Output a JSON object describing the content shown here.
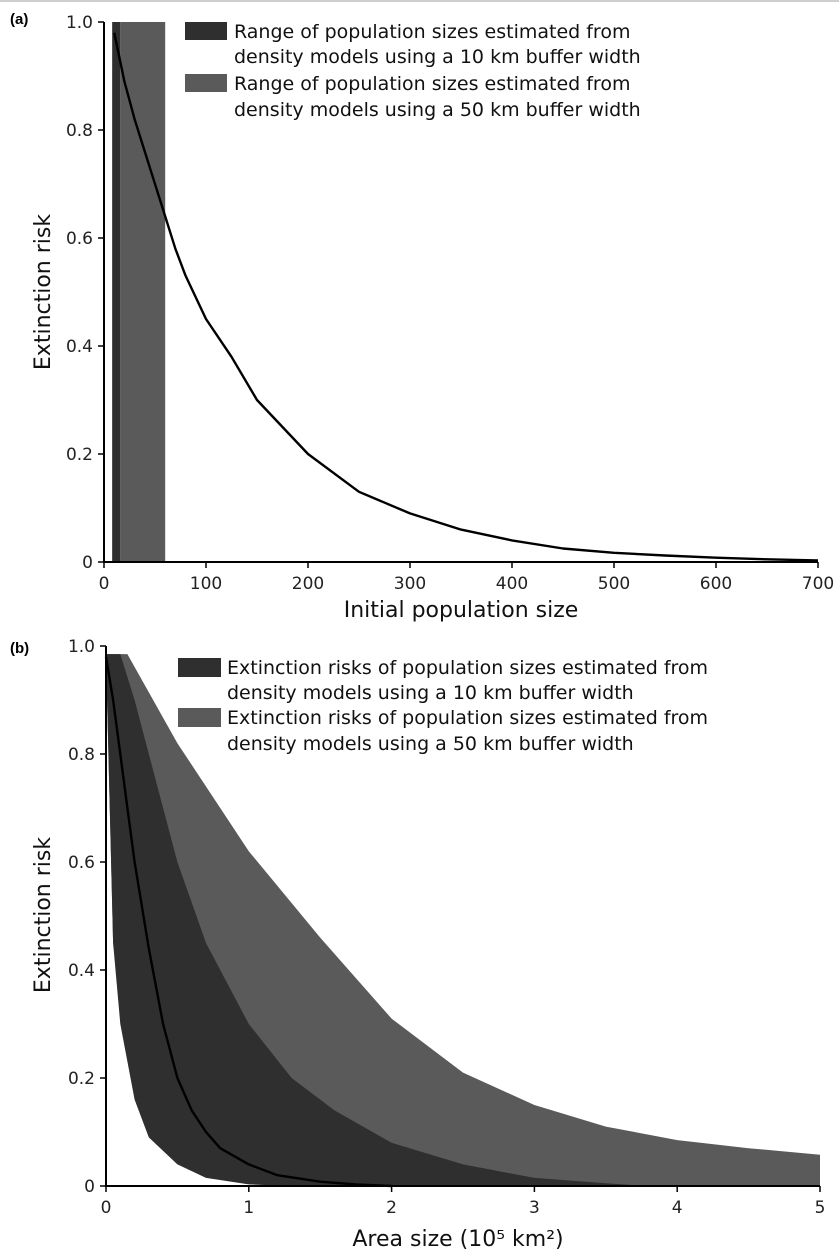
{
  "chart_data": [
    {
      "panel": "(a)",
      "type": "line",
      "xlabel": "Initial population size",
      "ylabel": "Extinction risk",
      "xlim": [
        0,
        700
      ],
      "ylim": [
        0,
        1.0
      ],
      "xticks": [
        "0",
        "100",
        "200",
        "300",
        "400",
        "500",
        "600",
        "700"
      ],
      "yticks": [
        "0",
        "0.2",
        "0.4",
        "0.6",
        "0.8",
        "1.0"
      ],
      "legend": [
        {
          "line1": "Range of population sizes estimated from",
          "line2": "density models using a 10 km buffer width",
          "color": "#2f2f2f"
        },
        {
          "line1": "Range of population sizes estimated from",
          "line2": "density models using a 50 km buffer width",
          "color": "#5a5a5a"
        }
      ],
      "bands": [
        {
          "name": "Range of population sizes estimated from density models using a 10 km buffer width",
          "x_range": [
            8,
            16
          ],
          "color": "#2f2f2f"
        },
        {
          "name": "Range of population sizes estimated from density models using a 50 km buffer width",
          "x_range": [
            16,
            60
          ],
          "color": "#5a5a5a"
        }
      ],
      "series": [
        {
          "x": [
            10,
            20,
            30,
            40,
            50,
            60,
            70,
            80,
            90,
            100,
            125,
            150,
            175,
            200,
            250,
            300,
            350,
            400,
            450,
            500,
            550,
            600,
            650,
            700
          ],
          "y": [
            0.98,
            0.89,
            0.82,
            0.76,
            0.7,
            0.64,
            0.58,
            0.53,
            0.49,
            0.45,
            0.38,
            0.3,
            0.25,
            0.2,
            0.13,
            0.09,
            0.06,
            0.04,
            0.025,
            0.017,
            0.012,
            0.008,
            0.005,
            0.003
          ]
        }
      ]
    },
    {
      "panel": "(b)",
      "type": "area",
      "xlabel": "Area size (10⁵ km²)",
      "ylabel": "Extinction risk",
      "xlim": [
        0,
        5
      ],
      "ylim": [
        0,
        1.0
      ],
      "xticks": [
        "0",
        "1",
        "2",
        "3",
        "4",
        "5"
      ],
      "yticks": [
        "0",
        "0.2",
        "0.4",
        "0.6",
        "0.8",
        "1.0"
      ],
      "legend": [
        {
          "line1": "Extinction risks of population sizes estimated from",
          "line2": "density models using a 10 km buffer width",
          "color": "#2f2f2f"
        },
        {
          "line1": "Extinction risks of population sizes estimated from",
          "line2": "density models using a 50 km buffer width",
          "color": "#5a5a5a"
        }
      ],
      "bands": [
        {
          "name": "Extinction risks of population sizes estimated from density models using a 50 km buffer width",
          "color": "#5a5a5a",
          "x": [
            0,
            0.05,
            0.15,
            0.5,
            1.0,
            1.5,
            2.0,
            2.5,
            3.0,
            3.5,
            4.0,
            4.5,
            5.0
          ],
          "upper": [
            0.985,
            0.985,
            0.985,
            0.82,
            0.62,
            0.46,
            0.31,
            0.21,
            0.15,
            0.11,
            0.085,
            0.07,
            0.058
          ],
          "lower": [
            0.98,
            0.45,
            0.25,
            0.1,
            0.04,
            0.02,
            0.01,
            0.005,
            0.002,
            0.001,
            0,
            0,
            0
          ]
        },
        {
          "name": "Extinction risks of population sizes estimated from density models using a 10 km buffer width",
          "color": "#2f2f2f",
          "x": [
            0,
            0.05,
            0.1,
            0.2,
            0.3,
            0.5,
            0.7,
            1.0,
            1.3,
            1.6,
            2.0,
            2.5,
            3.0,
            3.5,
            3.8
          ],
          "upper": [
            0.985,
            0.985,
            0.985,
            0.9,
            0.8,
            0.6,
            0.45,
            0.3,
            0.2,
            0.14,
            0.08,
            0.04,
            0.015,
            0.005,
            0
          ],
          "lower": [
            0.98,
            0.45,
            0.3,
            0.16,
            0.09,
            0.04,
            0.015,
            0.003,
            0,
            0,
            0,
            0,
            0,
            0,
            0
          ]
        }
      ],
      "series": [
        {
          "x": [
            0,
            0.05,
            0.1,
            0.15,
            0.2,
            0.25,
            0.3,
            0.4,
            0.5,
            0.6,
            0.7,
            0.8,
            1.0,
            1.2,
            1.5,
            1.75,
            2.0
          ],
          "y": [
            0.98,
            0.9,
            0.8,
            0.7,
            0.6,
            0.52,
            0.44,
            0.3,
            0.2,
            0.14,
            0.1,
            0.07,
            0.04,
            0.02,
            0.008,
            0.003,
            0
          ]
        }
      ]
    }
  ]
}
